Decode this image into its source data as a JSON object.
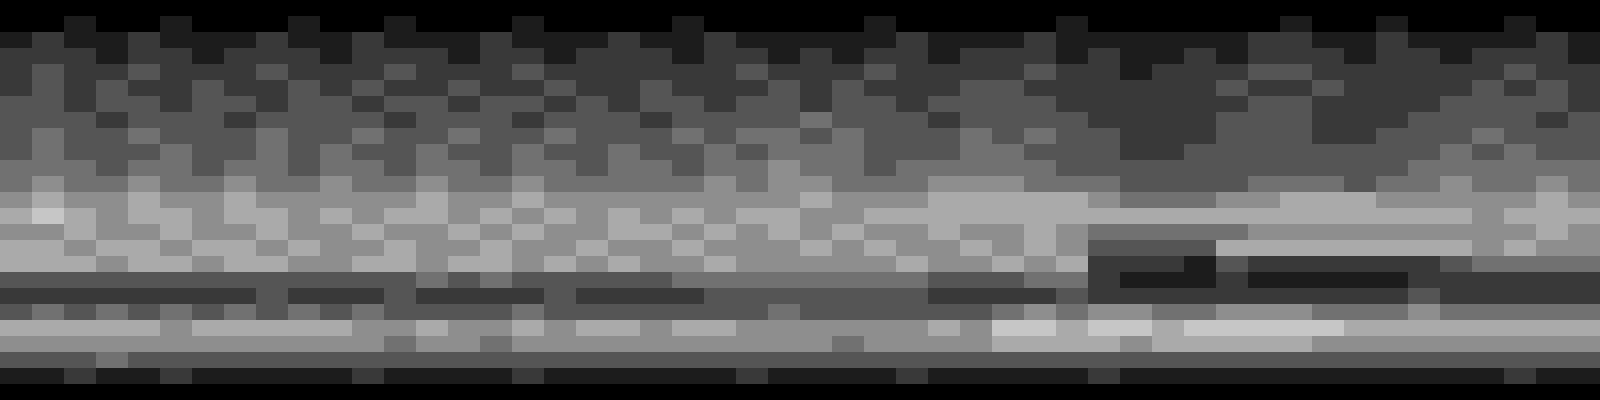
{
  "chart_data": {
    "type": "heatmap",
    "tick_labels": false,
    "color": "#ffffff",
    "zlim": [
      0,
      9
    ],
    "cells": [
      [
        0,
        0,
        0,
        0,
        0,
        0,
        0,
        0,
        0,
        0,
        0,
        0,
        0,
        0,
        0,
        0,
        0,
        0,
        0,
        0,
        0,
        0,
        0,
        0,
        0,
        0,
        0,
        0,
        0,
        0,
        0,
        0,
        0,
        0,
        0,
        0,
        0,
        0,
        0,
        0,
        0,
        0,
        0,
        0,
        0,
        0,
        0,
        0,
        0,
        0
      ],
      [
        0,
        0,
        1,
        0,
        0,
        1,
        0,
        0,
        0,
        1,
        0,
        0,
        1,
        0,
        0,
        0,
        1,
        0,
        0,
        0,
        0,
        1,
        0,
        0,
        0,
        0,
        0,
        1,
        0,
        0,
        0,
        0,
        0,
        1,
        0,
        0,
        0,
        0,
        0,
        0,
        1,
        0,
        0,
        1,
        0,
        0,
        0,
        1,
        0,
        0
      ],
      [
        1,
        2,
        1,
        1,
        2,
        1,
        1,
        1,
        2,
        1,
        1,
        2,
        1,
        1,
        1,
        2,
        1,
        1,
        1,
        2,
        1,
        1,
        2,
        1,
        1,
        1,
        1,
        1,
        2,
        1,
        1,
        1,
        2,
        1,
        1,
        1,
        1,
        1,
        1,
        2,
        2,
        1,
        1,
        2,
        1,
        1,
        1,
        1,
        2,
        1
      ],
      [
        2,
        2,
        2,
        1,
        2,
        2,
        1,
        2,
        2,
        2,
        1,
        2,
        2,
        2,
        1,
        2,
        2,
        1,
        2,
        2,
        2,
        1,
        2,
        2,
        1,
        2,
        1,
        2,
        2,
        1,
        2,
        2,
        2,
        1,
        2,
        1,
        1,
        2,
        1,
        2,
        2,
        2,
        1,
        2,
        2,
        1,
        2,
        2,
        2,
        1
      ],
      [
        2,
        3,
        2,
        2,
        3,
        2,
        2,
        2,
        3,
        2,
        2,
        2,
        3,
        2,
        2,
        2,
        3,
        2,
        2,
        2,
        2,
        2,
        2,
        3,
        2,
        2,
        2,
        3,
        2,
        2,
        2,
        2,
        3,
        2,
        2,
        1,
        2,
        2,
        2,
        3,
        3,
        2,
        2,
        2,
        2,
        2,
        2,
        3,
        2,
        2
      ],
      [
        2,
        3,
        2,
        3,
        2,
        2,
        3,
        2,
        2,
        3,
        2,
        3,
        2,
        2,
        3,
        2,
        2,
        3,
        2,
        2,
        3,
        2,
        2,
        2,
        3,
        2,
        3,
        2,
        2,
        2,
        3,
        3,
        2,
        2,
        2,
        2,
        2,
        2,
        3,
        2,
        2,
        3,
        2,
        2,
        2,
        2,
        3,
        2,
        3,
        2
      ],
      [
        3,
        3,
        2,
        3,
        3,
        2,
        3,
        3,
        2,
        3,
        3,
        2,
        3,
        3,
        2,
        3,
        3,
        2,
        3,
        2,
        3,
        3,
        2,
        3,
        3,
        2,
        3,
        3,
        2,
        3,
        3,
        3,
        3,
        2,
        2,
        2,
        2,
        2,
        2,
        3,
        3,
        2,
        2,
        2,
        2,
        3,
        3,
        3,
        3,
        2
      ],
      [
        3,
        3,
        3,
        2,
        3,
        3,
        3,
        2,
        3,
        3,
        3,
        3,
        2,
        3,
        3,
        3,
        2,
        3,
        3,
        3,
        2,
        3,
        3,
        3,
        3,
        4,
        3,
        3,
        3,
        2,
        3,
        3,
        3,
        3,
        2,
        2,
        2,
        2,
        3,
        3,
        3,
        2,
        2,
        2,
        3,
        3,
        3,
        3,
        2,
        3
      ],
      [
        3,
        4,
        3,
        3,
        4,
        3,
        3,
        3,
        4,
        3,
        3,
        4,
        3,
        3,
        4,
        3,
        3,
        4,
        3,
        3,
        3,
        4,
        3,
        4,
        4,
        3,
        4,
        3,
        3,
        3,
        4,
        3,
        4,
        3,
        3,
        2,
        2,
        2,
        3,
        3,
        3,
        2,
        2,
        3,
        3,
        3,
        4,
        3,
        3,
        3
      ],
      [
        3,
        4,
        3,
        3,
        3,
        4,
        3,
        3,
        4,
        3,
        4,
        3,
        3,
        4,
        3,
        3,
        4,
        3,
        3,
        4,
        3,
        3,
        4,
        3,
        4,
        4,
        4,
        3,
        3,
        3,
        4,
        4,
        3,
        3,
        3,
        2,
        2,
        3,
        3,
        3,
        3,
        3,
        3,
        3,
        3,
        4,
        3,
        4,
        3,
        3
      ],
      [
        4,
        4,
        4,
        3,
        4,
        4,
        3,
        4,
        4,
        3,
        4,
        4,
        3,
        4,
        4,
        3,
        4,
        4,
        3,
        4,
        4,
        3,
        4,
        4,
        5,
        4,
        4,
        3,
        4,
        4,
        4,
        4,
        4,
        3,
        3,
        3,
        3,
        3,
        3,
        3,
        3,
        3,
        3,
        3,
        4,
        4,
        4,
        4,
        4,
        4
      ],
      [
        4,
        5,
        4,
        4,
        5,
        4,
        4,
        5,
        4,
        4,
        5,
        4,
        4,
        5,
        4,
        4,
        5,
        4,
        4,
        4,
        4,
        4,
        5,
        4,
        5,
        5,
        4,
        4,
        4,
        5,
        5,
        5,
        4,
        4,
        4,
        3,
        3,
        3,
        3,
        4,
        4,
        4,
        3,
        4,
        4,
        5,
        4,
        4,
        5,
        4
      ],
      [
        5,
        6,
        5,
        5,
        6,
        5,
        5,
        6,
        5,
        5,
        5,
        5,
        5,
        6,
        5,
        5,
        6,
        5,
        5,
        5,
        5,
        5,
        5,
        5,
        5,
        6,
        5,
        5,
        5,
        6,
        6,
        6,
        6,
        6,
        5,
        4,
        4,
        4,
        5,
        5,
        6,
        6,
        6,
        5,
        5,
        5,
        5,
        5,
        6,
        5
      ],
      [
        6,
        7,
        6,
        5,
        6,
        6,
        5,
        6,
        6,
        5,
        6,
        5,
        6,
        6,
        5,
        6,
        5,
        6,
        5,
        6,
        5,
        6,
        5,
        6,
        6,
        5,
        5,
        6,
        6,
        6,
        6,
        6,
        6,
        6,
        6,
        6,
        6,
        6,
        6,
        6,
        6,
        6,
        6,
        6,
        6,
        6,
        5,
        6,
        6,
        6
      ],
      [
        5,
        5,
        6,
        5,
        5,
        6,
        5,
        5,
        6,
        5,
        5,
        6,
        5,
        5,
        6,
        5,
        6,
        5,
        5,
        6,
        6,
        5,
        6,
        5,
        6,
        5,
        6,
        5,
        5,
        6,
        5,
        5,
        6,
        5,
        4,
        4,
        4,
        4,
        4,
        5,
        5,
        5,
        5,
        5,
        5,
        5,
        5,
        5,
        6,
        5
      ],
      [
        6,
        6,
        5,
        6,
        6,
        5,
        6,
        6,
        5,
        6,
        5,
        5,
        6,
        5,
        5,
        6,
        5,
        5,
        6,
        5,
        5,
        6,
        5,
        5,
        5,
        6,
        5,
        6,
        5,
        5,
        6,
        5,
        6,
        5,
        3,
        3,
        3,
        3,
        6,
        6,
        6,
        6,
        6,
        6,
        6,
        6,
        5,
        6,
        5,
        5
      ],
      [
        6,
        6,
        6,
        5,
        6,
        6,
        5,
        6,
        6,
        5,
        5,
        6,
        6,
        5,
        6,
        6,
        5,
        6,
        5,
        6,
        5,
        5,
        6,
        5,
        5,
        5,
        5,
        5,
        6,
        5,
        5,
        6,
        5,
        6,
        2,
        2,
        2,
        1,
        3,
        2,
        2,
        2,
        2,
        2,
        2,
        3,
        4,
        4,
        4,
        4
      ],
      [
        3,
        3,
        3,
        3,
        3,
        3,
        3,
        3,
        3,
        3,
        3,
        3,
        3,
        4,
        3,
        4,
        3,
        3,
        3,
        3,
        3,
        4,
        4,
        4,
        4,
        4,
        4,
        4,
        4,
        3,
        3,
        3,
        4,
        4,
        2,
        1,
        1,
        1,
        2,
        1,
        1,
        1,
        1,
        1,
        2,
        2,
        2,
        2,
        2,
        2
      ],
      [
        2,
        2,
        2,
        2,
        2,
        2,
        2,
        2,
        3,
        2,
        2,
        2,
        3,
        2,
        2,
        2,
        2,
        3,
        2,
        2,
        2,
        2,
        3,
        3,
        3,
        3,
        3,
        3,
        3,
        2,
        2,
        2,
        2,
        3,
        2,
        2,
        2,
        2,
        2,
        2,
        2,
        2,
        2,
        2,
        3,
        2,
        2,
        2,
        2,
        2
      ],
      [
        3,
        4,
        3,
        4,
        3,
        4,
        3,
        4,
        3,
        4,
        3,
        4,
        3,
        3,
        3,
        3,
        4,
        3,
        3,
        3,
        3,
        3,
        3,
        3,
        4,
        3,
        3,
        3,
        3,
        3,
        3,
        4,
        5,
        4,
        5,
        5,
        4,
        4,
        5,
        5,
        5,
        4,
        4,
        4,
        5,
        4,
        4,
        4,
        4,
        4
      ],
      [
        6,
        6,
        6,
        6,
        6,
        5,
        6,
        6,
        6,
        6,
        6,
        5,
        5,
        6,
        5,
        5,
        6,
        5,
        6,
        6,
        5,
        6,
        6,
        5,
        5,
        5,
        5,
        5,
        5,
        6,
        5,
        7,
        7,
        6,
        7,
        7,
        6,
        7,
        7,
        7,
        7,
        7,
        6,
        6,
        6,
        6,
        6,
        6,
        6,
        6
      ],
      [
        5,
        5,
        5,
        5,
        5,
        5,
        5,
        5,
        5,
        5,
        5,
        5,
        4,
        5,
        5,
        4,
        5,
        5,
        5,
        5,
        5,
        5,
        5,
        5,
        5,
        5,
        4,
        5,
        5,
        5,
        5,
        6,
        6,
        6,
        6,
        5,
        6,
        6,
        6,
        6,
        6,
        5,
        5,
        5,
        5,
        5,
        5,
        5,
        5,
        5
      ],
      [
        3,
        3,
        3,
        4,
        3,
        3,
        3,
        3,
        3,
        3,
        3,
        3,
        3,
        3,
        3,
        3,
        3,
        3,
        3,
        3,
        3,
        3,
        3,
        3,
        3,
        3,
        3,
        3,
        3,
        3,
        3,
        3,
        3,
        3,
        3,
        3,
        3,
        3,
        3,
        3,
        3,
        3,
        3,
        3,
        3,
        3,
        3,
        3,
        3,
        3
      ],
      [
        1,
        1,
        2,
        1,
        1,
        2,
        1,
        1,
        1,
        1,
        1,
        2,
        1,
        1,
        1,
        1,
        2,
        1,
        1,
        1,
        1,
        1,
        1,
        2,
        1,
        1,
        1,
        1,
        2,
        1,
        1,
        1,
        1,
        1,
        2,
        1,
        1,
        1,
        1,
        1,
        1,
        1,
        1,
        1,
        1,
        1,
        1,
        2,
        1,
        1
      ],
      [
        0,
        0,
        0,
        0,
        0,
        0,
        0,
        0,
        0,
        0,
        0,
        0,
        0,
        0,
        0,
        0,
        0,
        0,
        0,
        0,
        0,
        0,
        0,
        0,
        0,
        0,
        0,
        0,
        0,
        0,
        0,
        0,
        0,
        0,
        0,
        0,
        0,
        0,
        0,
        0,
        0,
        0,
        0,
        0,
        0,
        0,
        0,
        0,
        0,
        0
      ]
    ]
  }
}
